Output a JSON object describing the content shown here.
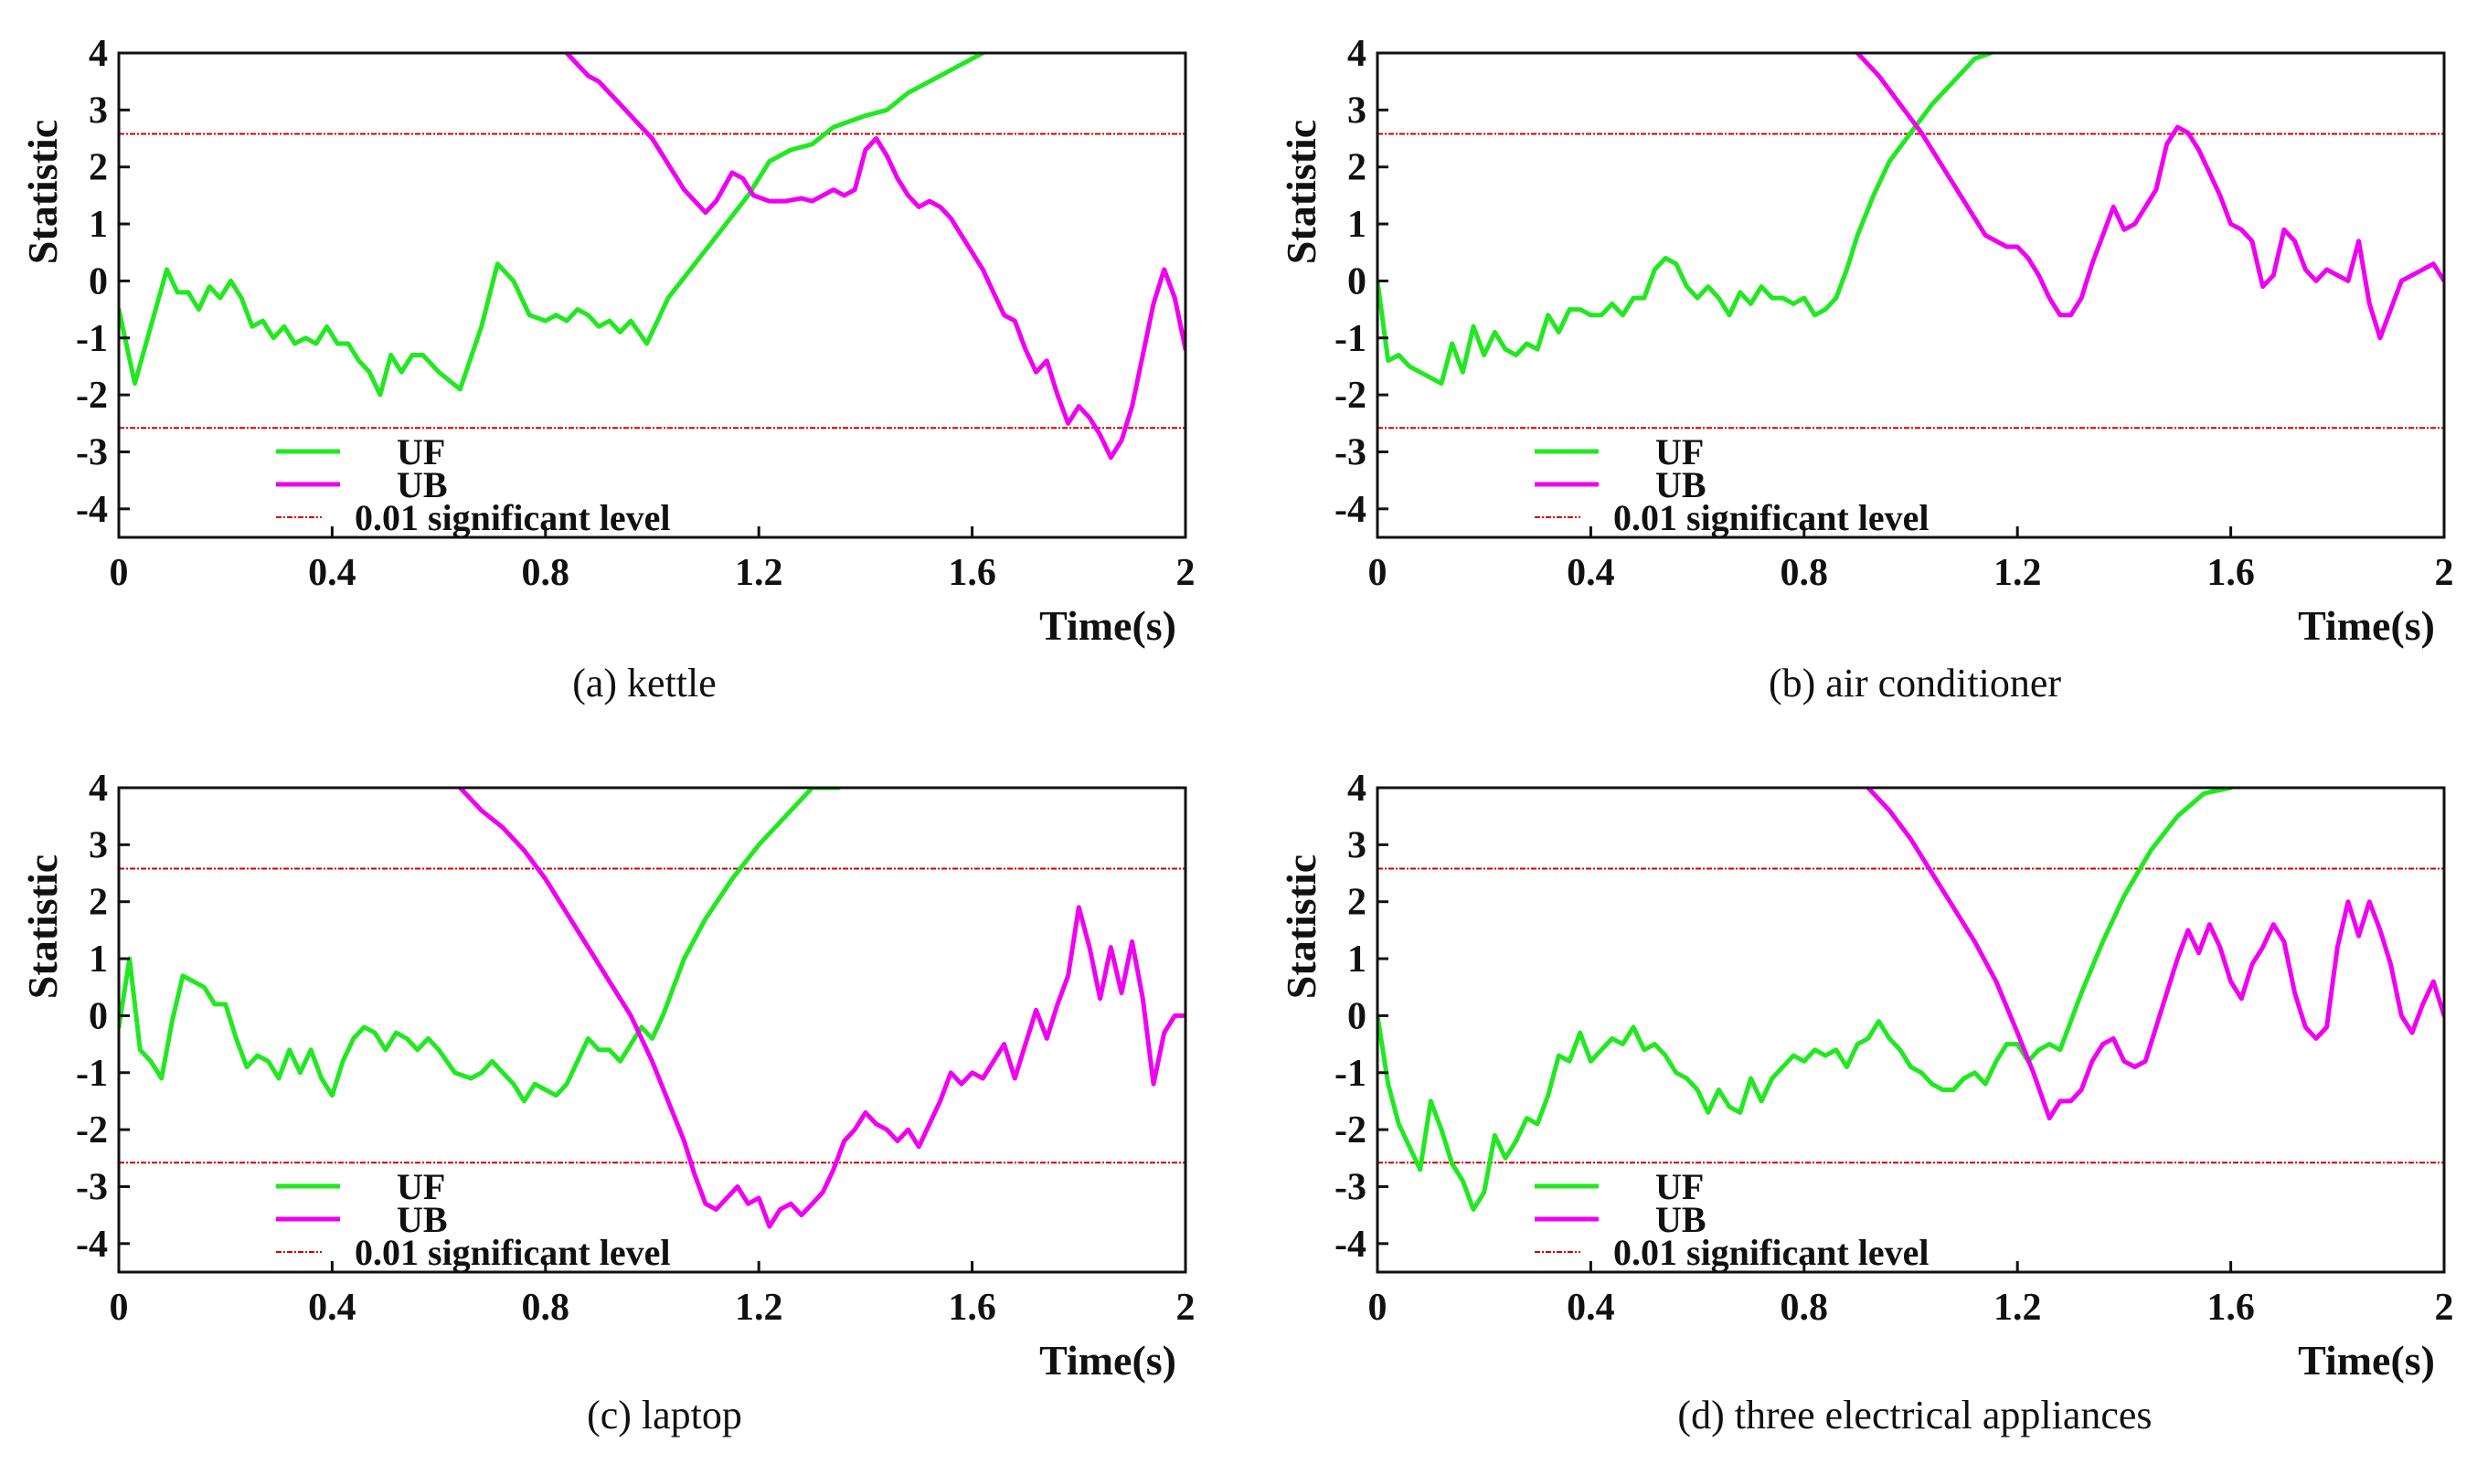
{
  "colors": {
    "uf": "#22e822",
    "ub": "#f000f0",
    "level": "#d40000",
    "axis": "#111111"
  },
  "chart_data": [
    {
      "type": "line",
      "caption": "(a) kettle",
      "xlabel": "Time(s)",
      "ylabel": "Statistic",
      "xlim": [
        0,
        2
      ],
      "ylim": [
        -4.5,
        4
      ],
      "xticks": [
        "0",
        "0.4",
        "0.8",
        "1.2",
        "1.6",
        "2"
      ],
      "yticks": [
        "4",
        "3",
        "2",
        "1",
        "0",
        "-1",
        "-2",
        "-3",
        "-4"
      ],
      "significance_level": 2.58,
      "legend": [
        "UF",
        "UB",
        "0.01 significant level"
      ],
      "series": [
        {
          "name": "UF",
          "x": [
            0,
            0.03,
            0.06,
            0.09,
            0.11,
            0.13,
            0.15,
            0.17,
            0.19,
            0.21,
            0.23,
            0.25,
            0.27,
            0.29,
            0.31,
            0.33,
            0.35,
            0.37,
            0.39,
            0.41,
            0.43,
            0.45,
            0.47,
            0.49,
            0.51,
            0.53,
            0.55,
            0.57,
            0.6,
            0.64,
            0.68,
            0.71,
            0.74,
            0.77,
            0.8,
            0.82,
            0.84,
            0.86,
            0.88,
            0.9,
            0.92,
            0.94,
            0.96,
            0.99,
            1.03,
            1.08,
            1.13,
            1.18,
            1.22,
            1.26,
            1.3,
            1.34,
            1.37,
            1.4,
            1.44,
            1.48,
            1.52,
            1.56,
            1.6,
            1.62
          ],
          "y": [
            -0.5,
            -1.8,
            -0.8,
            0.2,
            -0.2,
            -0.2,
            -0.5,
            -0.1,
            -0.3,
            0,
            -0.3,
            -0.8,
            -0.7,
            -1,
            -0.8,
            -1.1,
            -1,
            -1.1,
            -0.8,
            -1.1,
            -1.1,
            -1.4,
            -1.6,
            -2,
            -1.3,
            -1.6,
            -1.3,
            -1.3,
            -1.6,
            -1.9,
            -0.8,
            0.3,
            0,
            -0.6,
            -0.7,
            -0.6,
            -0.7,
            -0.5,
            -0.6,
            -0.8,
            -0.7,
            -0.9,
            -0.7,
            -1.1,
            -0.3,
            0.3,
            0.9,
            1.5,
            2.1,
            2.3,
            2.4,
            2.7,
            2.8,
            2.9,
            3,
            3.3,
            3.5,
            3.7,
            3.9,
            4
          ]
        },
        {
          "name": "UB",
          "x": [
            0.84,
            0.86,
            0.88,
            0.9,
            0.92,
            0.94,
            0.96,
            0.98,
            1,
            1.02,
            1.04,
            1.06,
            1.08,
            1.1,
            1.12,
            1.15,
            1.17,
            1.19,
            1.22,
            1.25,
            1.28,
            1.3,
            1.32,
            1.34,
            1.36,
            1.38,
            1.4,
            1.42,
            1.44,
            1.46,
            1.48,
            1.5,
            1.52,
            1.54,
            1.56,
            1.58,
            1.6,
            1.62,
            1.64,
            1.66,
            1.68,
            1.7,
            1.72,
            1.74,
            1.76,
            1.78,
            1.8,
            1.82,
            1.84,
            1.86,
            1.88,
            1.9,
            1.92,
            1.94,
            1.96,
            1.98,
            2
          ],
          "y": [
            4,
            3.8,
            3.6,
            3.5,
            3.3,
            3.1,
            2.9,
            2.7,
            2.5,
            2.2,
            1.9,
            1.6,
            1.4,
            1.2,
            1.4,
            1.9,
            1.8,
            1.5,
            1.4,
            1.4,
            1.45,
            1.4,
            1.5,
            1.6,
            1.5,
            1.6,
            2.3,
            2.5,
            2.2,
            1.8,
            1.5,
            1.3,
            1.4,
            1.3,
            1.1,
            0.8,
            0.5,
            0.2,
            -0.2,
            -0.6,
            -0.7,
            -1.2,
            -1.6,
            -1.4,
            -2,
            -2.5,
            -2.2,
            -2.4,
            -2.7,
            -3.1,
            -2.8,
            -2.2,
            -1.3,
            -0.4,
            0.2,
            -0.3,
            -1.2
          ]
        }
      ]
    },
    {
      "type": "line",
      "caption": "(b) air conditioner",
      "xlabel": "Time(s)",
      "ylabel": "Statistic",
      "xlim": [
        0,
        2
      ],
      "ylim": [
        -4.5,
        4
      ],
      "xticks": [
        "0",
        "0.4",
        "0.8",
        "1.2",
        "1.6",
        "2"
      ],
      "yticks": [
        "4",
        "3",
        "2",
        "1",
        "0",
        "-1",
        "-2",
        "-3",
        "-4"
      ],
      "significance_level": 2.58,
      "legend": [
        "UF",
        "UB",
        "0.01 significant level"
      ],
      "series": [
        {
          "name": "UF",
          "x": [
            0,
            0.02,
            0.04,
            0.06,
            0.08,
            0.1,
            0.12,
            0.14,
            0.16,
            0.18,
            0.2,
            0.22,
            0.24,
            0.26,
            0.28,
            0.3,
            0.32,
            0.34,
            0.36,
            0.38,
            0.4,
            0.42,
            0.44,
            0.46,
            0.48,
            0.5,
            0.52,
            0.54,
            0.56,
            0.58,
            0.6,
            0.62,
            0.64,
            0.66,
            0.68,
            0.7,
            0.72,
            0.74,
            0.76,
            0.78,
            0.8,
            0.82,
            0.84,
            0.86,
            0.88,
            0.9,
            0.93,
            0.96,
            1,
            1.04,
            1.08,
            1.12,
            1.15
          ],
          "y": [
            0,
            -1.4,
            -1.3,
            -1.5,
            -1.6,
            -1.7,
            -1.8,
            -1.1,
            -1.6,
            -0.8,
            -1.3,
            -0.9,
            -1.2,
            -1.3,
            -1.1,
            -1.2,
            -0.6,
            -0.9,
            -0.5,
            -0.5,
            -0.6,
            -0.6,
            -0.4,
            -0.6,
            -0.3,
            -0.3,
            0.2,
            0.4,
            0.3,
            -0.1,
            -0.3,
            -0.1,
            -0.3,
            -0.6,
            -0.2,
            -0.4,
            -0.1,
            -0.3,
            -0.3,
            -0.4,
            -0.3,
            -0.6,
            -0.5,
            -0.3,
            0.2,
            0.8,
            1.5,
            2.1,
            2.6,
            3.1,
            3.5,
            3.9,
            4
          ]
        },
        {
          "name": "UB",
          "x": [
            0.9,
            0.94,
            0.98,
            1.02,
            1.06,
            1.1,
            1.14,
            1.18,
            1.2,
            1.22,
            1.24,
            1.26,
            1.28,
            1.3,
            1.32,
            1.34,
            1.36,
            1.38,
            1.4,
            1.42,
            1.44,
            1.46,
            1.48,
            1.5,
            1.52,
            1.54,
            1.56,
            1.58,
            1.6,
            1.62,
            1.64,
            1.66,
            1.68,
            1.7,
            1.72,
            1.74,
            1.76,
            1.78,
            1.8,
            1.82,
            1.84,
            1.86,
            1.88,
            1.9,
            1.92,
            1.94,
            1.96,
            1.98,
            2
          ],
          "y": [
            4,
            3.6,
            3.1,
            2.6,
            2,
            1.4,
            0.8,
            0.6,
            0.6,
            0.4,
            0.1,
            -0.3,
            -0.6,
            -0.6,
            -0.3,
            0.3,
            0.8,
            1.3,
            0.9,
            1,
            1.3,
            1.6,
            2.4,
            2.7,
            2.6,
            2.3,
            1.9,
            1.5,
            1,
            0.9,
            0.7,
            -0.1,
            0.1,
            0.9,
            0.7,
            0.2,
            0,
            0.2,
            0.1,
            0,
            0.7,
            -0.4,
            -1,
            -0.5,
            0,
            0.1,
            0.2,
            0.3,
            0
          ]
        }
      ]
    },
    {
      "type": "line",
      "caption": "(c) laptop",
      "xlabel": "Time(s)",
      "ylabel": "Statistic",
      "xlim": [
        0,
        2
      ],
      "ylim": [
        -4.5,
        4
      ],
      "xticks": [
        "0",
        "0.4",
        "0.8",
        "1.2",
        "1.6",
        "2"
      ],
      "yticks": [
        "4",
        "3",
        "2",
        "1",
        "0",
        "-1",
        "-2",
        "-3",
        "-4"
      ],
      "significance_level": 2.58,
      "legend": [
        "UF",
        "UB",
        "0.01 significant level"
      ],
      "series": [
        {
          "name": "UF",
          "x": [
            0,
            0.02,
            0.04,
            0.06,
            0.08,
            0.1,
            0.12,
            0.14,
            0.16,
            0.18,
            0.2,
            0.22,
            0.24,
            0.26,
            0.28,
            0.3,
            0.32,
            0.34,
            0.36,
            0.38,
            0.4,
            0.42,
            0.44,
            0.46,
            0.48,
            0.5,
            0.52,
            0.54,
            0.56,
            0.58,
            0.6,
            0.63,
            0.66,
            0.68,
            0.7,
            0.72,
            0.74,
            0.76,
            0.78,
            0.8,
            0.82,
            0.84,
            0.86,
            0.88,
            0.9,
            0.92,
            0.94,
            0.96,
            0.98,
            1,
            1.02,
            1.04,
            1.06,
            1.1,
            1.15,
            1.2,
            1.25,
            1.3,
            1.35
          ],
          "y": [
            -0.2,
            1,
            -0.6,
            -0.8,
            -1.1,
            -0.1,
            0.7,
            0.6,
            0.5,
            0.2,
            0.2,
            -0.4,
            -0.9,
            -0.7,
            -0.8,
            -1.1,
            -0.6,
            -1,
            -0.6,
            -1.1,
            -1.4,
            -0.8,
            -0.4,
            -0.2,
            -0.3,
            -0.6,
            -0.3,
            -0.4,
            -0.6,
            -0.4,
            -0.6,
            -1,
            -1.1,
            -1,
            -0.8,
            -1,
            -1.2,
            -1.5,
            -1.2,
            -1.3,
            -1.4,
            -1.2,
            -0.8,
            -0.4,
            -0.6,
            -0.6,
            -0.8,
            -0.5,
            -0.2,
            -0.4,
            0,
            0.5,
            1,
            1.7,
            2.4,
            3,
            3.5,
            4,
            4
          ]
        },
        {
          "name": "UB",
          "x": [
            0.64,
            0.68,
            0.72,
            0.76,
            0.8,
            0.84,
            0.88,
            0.92,
            0.96,
            1,
            1.03,
            1.06,
            1.08,
            1.1,
            1.12,
            1.14,
            1.16,
            1.18,
            1.2,
            1.22,
            1.24,
            1.26,
            1.28,
            1.3,
            1.32,
            1.34,
            1.36,
            1.38,
            1.4,
            1.42,
            1.44,
            1.46,
            1.48,
            1.5,
            1.52,
            1.54,
            1.56,
            1.58,
            1.6,
            1.62,
            1.64,
            1.66,
            1.68,
            1.7,
            1.72,
            1.74,
            1.76,
            1.78,
            1.8,
            1.82,
            1.84,
            1.86,
            1.88,
            1.9,
            1.92,
            1.94,
            1.96,
            1.98,
            2
          ],
          "y": [
            4,
            3.6,
            3.3,
            2.9,
            2.4,
            1.8,
            1.2,
            0.6,
            0,
            -0.8,
            -1.5,
            -2.2,
            -2.8,
            -3.3,
            -3.4,
            -3.2,
            -3,
            -3.3,
            -3.2,
            -3.7,
            -3.4,
            -3.3,
            -3.5,
            -3.3,
            -3.1,
            -2.7,
            -2.2,
            -2,
            -1.7,
            -1.9,
            -2,
            -2.2,
            -2,
            -2.3,
            -1.9,
            -1.5,
            -1,
            -1.2,
            -1,
            -1.1,
            -0.8,
            -0.5,
            -1.1,
            -0.5,
            0.1,
            -0.4,
            0.2,
            0.7,
            1.9,
            1.2,
            0.3,
            1.2,
            0.4,
            1.3,
            0.3,
            -1.2,
            -0.3,
            0,
            0
          ]
        }
      ]
    },
    {
      "type": "line",
      "caption": "(d) three electrical appliances",
      "xlabel": "Time(s)",
      "ylabel": "Statistic",
      "xlim": [
        0,
        2
      ],
      "ylim": [
        -4.5,
        4
      ],
      "xticks": [
        "0",
        "0.4",
        "0.8",
        "1.2",
        "1.6",
        "2"
      ],
      "yticks": [
        "4",
        "3",
        "2",
        "1",
        "0",
        "-1",
        "-2",
        "-3",
        "-4"
      ],
      "significance_level": 2.58,
      "legend": [
        "UF",
        "UB",
        "0.01 significant level"
      ],
      "series": [
        {
          "name": "UF",
          "x": [
            0,
            0.02,
            0.04,
            0.06,
            0.08,
            0.1,
            0.12,
            0.14,
            0.16,
            0.18,
            0.2,
            0.22,
            0.24,
            0.26,
            0.28,
            0.3,
            0.32,
            0.34,
            0.36,
            0.38,
            0.4,
            0.42,
            0.44,
            0.46,
            0.48,
            0.5,
            0.52,
            0.54,
            0.56,
            0.58,
            0.6,
            0.62,
            0.64,
            0.66,
            0.68,
            0.7,
            0.72,
            0.74,
            0.76,
            0.78,
            0.8,
            0.82,
            0.84,
            0.86,
            0.88,
            0.9,
            0.92,
            0.94,
            0.96,
            0.98,
            1,
            1.02,
            1.04,
            1.06,
            1.08,
            1.1,
            1.12,
            1.14,
            1.16,
            1.18,
            1.2,
            1.22,
            1.24,
            1.26,
            1.28,
            1.32,
            1.36,
            1.4,
            1.45,
            1.5,
            1.55,
            1.6
          ],
          "y": [
            0,
            -1.2,
            -1.9,
            -2.3,
            -2.7,
            -1.5,
            -2,
            -2.6,
            -2.9,
            -3.4,
            -3.1,
            -2.1,
            -2.5,
            -2.2,
            -1.8,
            -1.9,
            -1.4,
            -0.7,
            -0.8,
            -0.3,
            -0.8,
            -0.6,
            -0.4,
            -0.5,
            -0.2,
            -0.6,
            -0.5,
            -0.7,
            -1,
            -1.1,
            -1.3,
            -1.7,
            -1.3,
            -1.6,
            -1.7,
            -1.1,
            -1.5,
            -1.1,
            -0.9,
            -0.7,
            -0.8,
            -0.6,
            -0.7,
            -0.6,
            -0.9,
            -0.5,
            -0.4,
            -0.1,
            -0.4,
            -0.6,
            -0.9,
            -1,
            -1.2,
            -1.3,
            -1.3,
            -1.1,
            -1,
            -1.2,
            -0.8,
            -0.5,
            -0.5,
            -0.8,
            -0.6,
            -0.5,
            -0.6,
            0.4,
            1.3,
            2.1,
            2.9,
            3.5,
            3.9,
            4
          ]
        },
        {
          "name": "UB",
          "x": [
            0.92,
            0.96,
            1,
            1.04,
            1.08,
            1.12,
            1.16,
            1.2,
            1.23,
            1.26,
            1.28,
            1.3,
            1.32,
            1.34,
            1.36,
            1.38,
            1.4,
            1.42,
            1.44,
            1.46,
            1.48,
            1.5,
            1.52,
            1.54,
            1.56,
            1.58,
            1.6,
            1.62,
            1.64,
            1.66,
            1.68,
            1.7,
            1.72,
            1.74,
            1.76,
            1.78,
            1.8,
            1.82,
            1.84,
            1.86,
            1.88,
            1.9,
            1.92,
            1.94,
            1.96,
            1.98,
            2
          ],
          "y": [
            4,
            3.6,
            3.1,
            2.5,
            1.9,
            1.3,
            0.6,
            -0.3,
            -1,
            -1.8,
            -1.5,
            -1.5,
            -1.3,
            -0.8,
            -0.5,
            -0.4,
            -0.8,
            -0.9,
            -0.8,
            -0.2,
            0.4,
            1,
            1.5,
            1.1,
            1.6,
            1.2,
            0.6,
            0.3,
            0.9,
            1.2,
            1.6,
            1.3,
            0.4,
            -0.2,
            -0.4,
            -0.2,
            1.2,
            2,
            1.4,
            2,
            1.5,
            0.9,
            0,
            -0.3,
            0.2,
            0.6,
            0
          ]
        }
      ]
    }
  ]
}
